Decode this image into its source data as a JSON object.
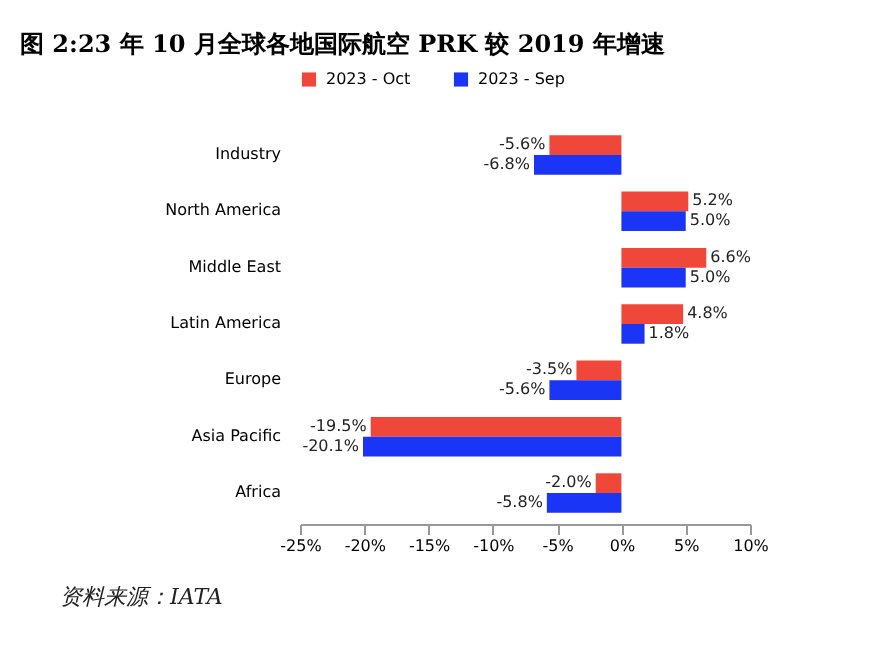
{
  "chart_data": {
    "type": "bar",
    "orientation": "horizontal",
    "title": "图 2:23 年 10 月全球各地国际航空 PRK 较 2019 年增速",
    "categories": [
      "Industry",
      "North America",
      "Middle East",
      "Latin America",
      "Europe",
      "Asia Pacific",
      "Africa"
    ],
    "series": [
      {
        "name": "2023 - Oct",
        "color": "#f0473b",
        "values": [
          -5.6,
          5.2,
          6.6,
          4.8,
          -3.5,
          -19.5,
          -2.0
        ],
        "value_labels": [
          "-5.6%",
          "5.2%",
          "6.6%",
          "4.8%",
          "-3.5%",
          "-19.5%",
          "-2.0%"
        ]
      },
      {
        "name": "2023 - Sep",
        "color": "#1a35f5",
        "values": [
          -6.8,
          5.0,
          5.0,
          1.8,
          -5.6,
          -20.1,
          -5.8
        ],
        "value_labels": [
          "-6.8%",
          "5.0%",
          "5.0%",
          "1.8%",
          "-5.6%",
          "-20.1%",
          "-5.8%"
        ]
      }
    ],
    "xlim": [
      -25,
      10
    ],
    "xticks": [
      {
        "value": -25,
        "label": "-25%"
      },
      {
        "value": -20,
        "label": "-20%"
      },
      {
        "value": -15,
        "label": "-15%"
      },
      {
        "value": -10,
        "label": "-10%"
      },
      {
        "value": -5,
        "label": "-5%"
      },
      {
        "value": 0,
        "label": "0%"
      },
      {
        "value": 5,
        "label": "5%"
      },
      {
        "value": 10,
        "label": "10%"
      }
    ],
    "grid": false,
    "legend": "top",
    "annotations": [
      "资料来源：IATA"
    ]
  }
}
